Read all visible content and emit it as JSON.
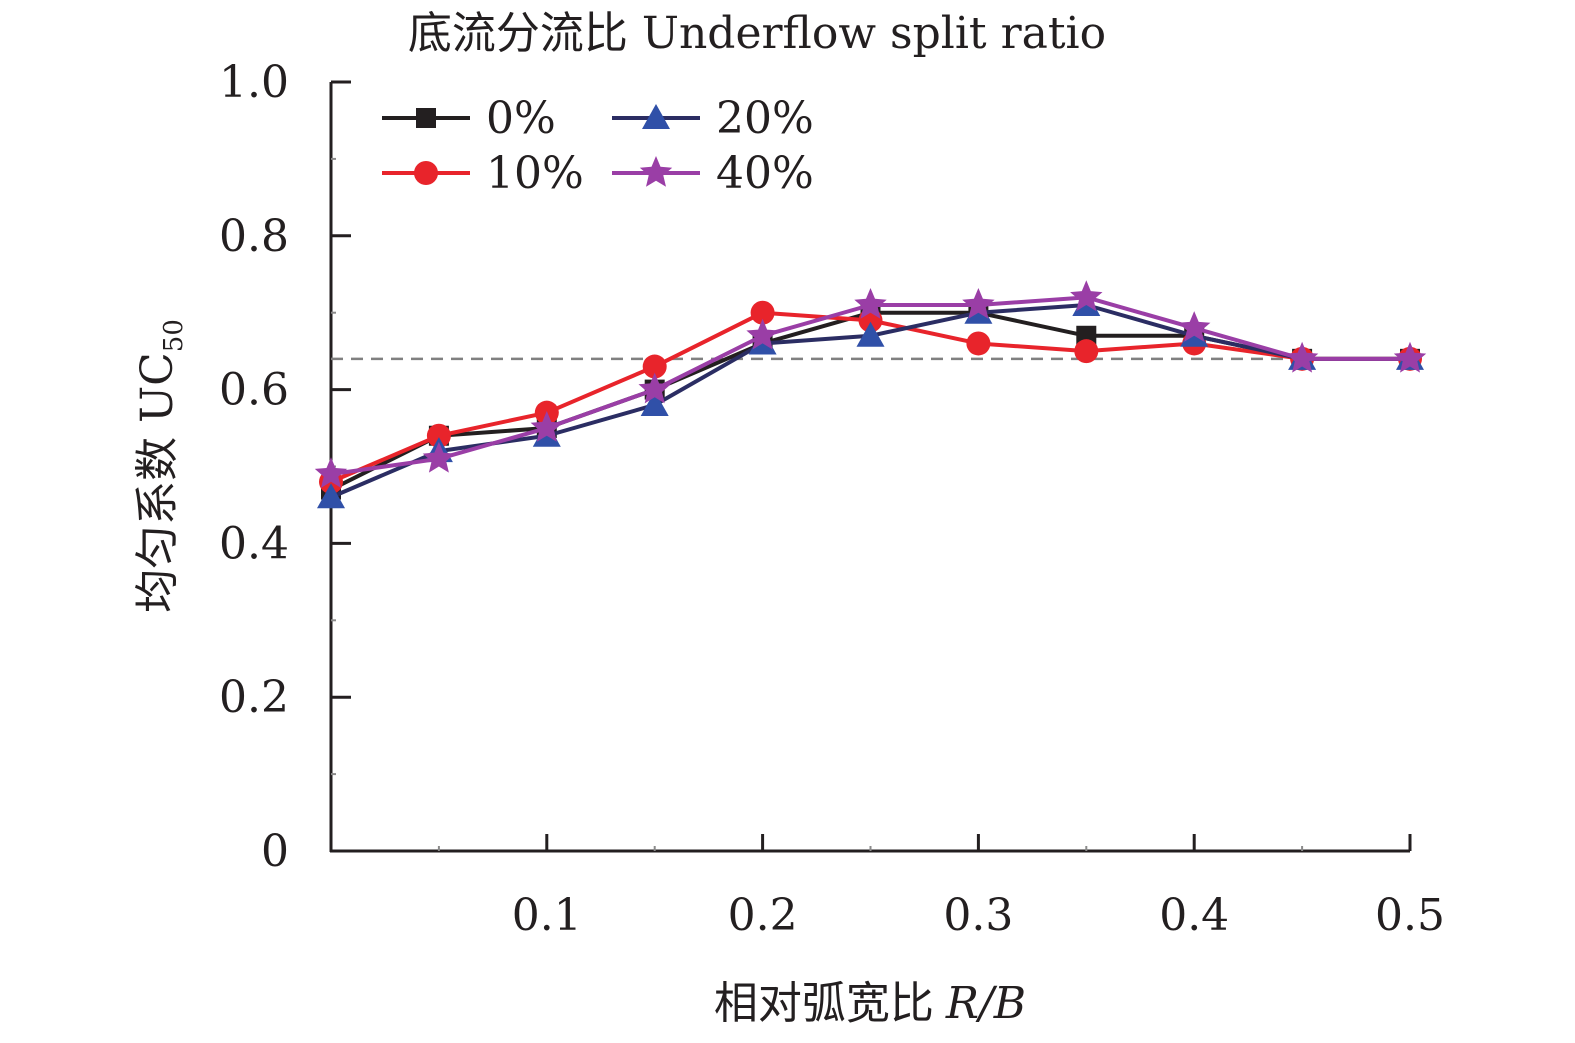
{
  "chart_data": {
    "type": "line",
    "title": "底流分流比 Underflow split ratio",
    "xlabel": "相对弧宽比",
    "xlabel_italic": "R/B",
    "ylabel": "均匀系数 UC",
    "ylabel_sub": "50",
    "xlim": [
      0,
      0.5
    ],
    "ylim": [
      0,
      1.0
    ],
    "x_ticks": [
      0.1,
      0.2,
      0.3,
      0.4,
      0.5
    ],
    "x_tick_labels": [
      "0.1",
      "0.2",
      "0.3",
      "0.4",
      "0.5"
    ],
    "y_ticks": [
      0,
      0.2,
      0.4,
      0.6,
      0.8,
      1.0
    ],
    "y_tick_labels": [
      "0",
      "0.2",
      "0.4",
      "0.6",
      "0.8",
      "1.0"
    ],
    "grid": false,
    "legend_position": "top-left",
    "reference_line": {
      "y": 0.64,
      "style": "dashed",
      "color": "#808080"
    },
    "x": [
      0,
      0.05,
      0.1,
      0.15,
      0.2,
      0.25,
      0.3,
      0.35,
      0.4,
      0.45,
      0.5
    ],
    "series": [
      {
        "name": "0%",
        "marker": "square",
        "line_color": "#231f20",
        "marker_color": "#231f20",
        "values": [
          0.47,
          0.54,
          0.55,
          0.6,
          0.66,
          0.7,
          0.7,
          0.67,
          0.67,
          0.64,
          0.64
        ]
      },
      {
        "name": "10%",
        "marker": "circle",
        "line_color": "#e8242b",
        "marker_color": "#e8242b",
        "values": [
          0.48,
          0.54,
          0.57,
          0.63,
          0.7,
          0.69,
          0.66,
          0.65,
          0.66,
          0.64,
          0.64
        ]
      },
      {
        "name": "20%",
        "marker": "triangle",
        "line_color": "#2b2d63",
        "marker_color": "#3050a8",
        "values": [
          0.46,
          0.52,
          0.54,
          0.58,
          0.66,
          0.67,
          0.7,
          0.71,
          0.67,
          0.64,
          0.64
        ]
      },
      {
        "name": "40%",
        "marker": "star",
        "line_color": "#9a3ea6",
        "marker_color": "#9a3ea6",
        "values": [
          0.49,
          0.51,
          0.55,
          0.6,
          0.67,
          0.71,
          0.71,
          0.72,
          0.68,
          0.64,
          0.64
        ]
      }
    ]
  }
}
